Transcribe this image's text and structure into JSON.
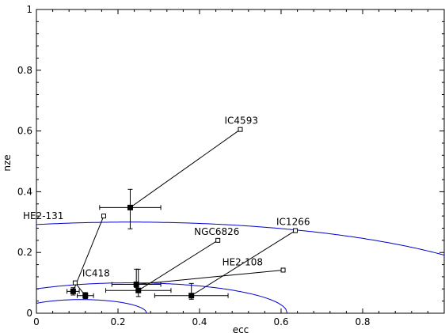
{
  "chart_data": {
    "type": "scatter",
    "xlabel": "ecc",
    "ylabel": "nze",
    "xlim": [
      0,
      1
    ],
    "ylim": [
      0,
      1
    ],
    "x_ticks": [
      {
        "value": 0,
        "label": "0"
      },
      {
        "value": 0.2,
        "label": "0.2"
      },
      {
        "value": 0.4,
        "label": "0.4"
      },
      {
        "value": 0.6,
        "label": "0.6"
      },
      {
        "value": 0.8,
        "label": "0.8"
      }
    ],
    "y_ticks": [
      {
        "value": 0,
        "label": "0"
      },
      {
        "value": 0.2,
        "label": "0.2"
      },
      {
        "value": 0.4,
        "label": "0.4"
      },
      {
        "value": 0.6,
        "label": "0.6"
      },
      {
        "value": 0.8,
        "label": "0.8"
      },
      {
        "value": 1,
        "label": "1"
      }
    ],
    "grid": false,
    "open_marker_color": "#000000",
    "filled_marker_color": "#000000",
    "curve_color": "#0000cc",
    "objects": [
      {
        "name": "IC4593",
        "open": [
          0.5,
          0.605
        ],
        "filled": [
          0.23,
          0.348
        ],
        "xerr": 0.075,
        "yerr": [
          0.07,
          0.06
        ]
      },
      {
        "name": "HE2-131",
        "open": [
          0.165,
          0.32
        ],
        "filled": [
          0.09,
          0.072
        ],
        "xerr": 0.015,
        "yerr": [
          0.012,
          0.012
        ]
      },
      {
        "name": "NGC6826",
        "open": [
          0.445,
          0.24
        ],
        "filled": [
          0.25,
          0.075
        ],
        "xerr": 0.08,
        "yerr": [
          0.02,
          0.07
        ]
      },
      {
        "name": "IC1266",
        "open": [
          0.635,
          0.272
        ],
        "filled": [
          0.38,
          0.058
        ],
        "xerr": 0.09,
        "yerr": [
          0.012,
          0.04
        ]
      },
      {
        "name": "HE2-108",
        "open": [
          0.605,
          0.142
        ],
        "filled": [
          0.245,
          0.095
        ],
        "xerr": 0.06,
        "yerr": [
          0.01,
          0.05
        ]
      },
      {
        "name": "IC418",
        "open": [
          0.095,
          0.1
        ],
        "filled": [
          0.12,
          0.058
        ],
        "xerr": 0.02,
        "yerr": [
          0.01,
          0.01
        ]
      }
    ],
    "curves": [
      {
        "type": "ellipse",
        "a": 1.0,
        "b": 0.3,
        "cx": 0.23,
        "x_from": 0.0,
        "x_to": 1.0
      },
      {
        "type": "ellipse",
        "a": 0.385,
        "b": 0.1,
        "cx": 0.23,
        "x_from": 0.0,
        "x_to": 0.615
      },
      {
        "type": "ellipse",
        "a": 0.16,
        "b": 0.045,
        "cx": 0.11,
        "x_from": 0.0,
        "x_to": 0.27
      }
    ]
  }
}
